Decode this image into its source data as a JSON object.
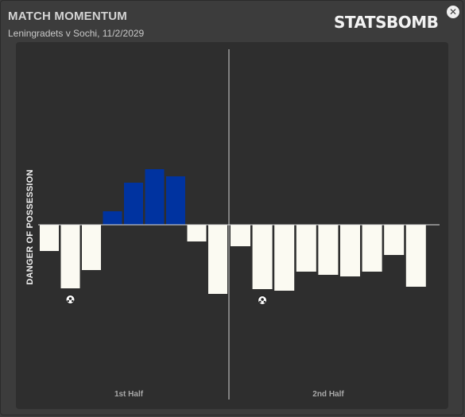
{
  "header": {
    "title": "MATCH MOMENTUM",
    "subtitle": "Leningradets v Sochi, 11/2/2029",
    "logo": "STATSBOMB",
    "close_icon": "close-icon"
  },
  "colors": {
    "background": "#3c3c3c",
    "panel": "#2e2e2e",
    "positive": "#0033a0",
    "negative": "#fbfaf2",
    "baseline": "#e0e0e0",
    "divider": "#9a9a9a"
  },
  "chart_data": {
    "type": "bar",
    "ylabel": "DANGER OF POSSESSION",
    "xlabel": "",
    "halves": [
      {
        "label": "1st Half",
        "values": [
          -33,
          -80,
          -57,
          17,
          53,
          70,
          61,
          -21,
          -87
        ],
        "goals": [
          1
        ]
      },
      {
        "label": "2nd Half",
        "values": [
          -27,
          -81,
          -83,
          -59,
          -63,
          -65,
          -59,
          -38,
          -78
        ],
        "goals": [
          1
        ]
      }
    ],
    "ylim": [
      -200,
      180
    ],
    "goal_icon": "football-icon",
    "grid": false
  }
}
